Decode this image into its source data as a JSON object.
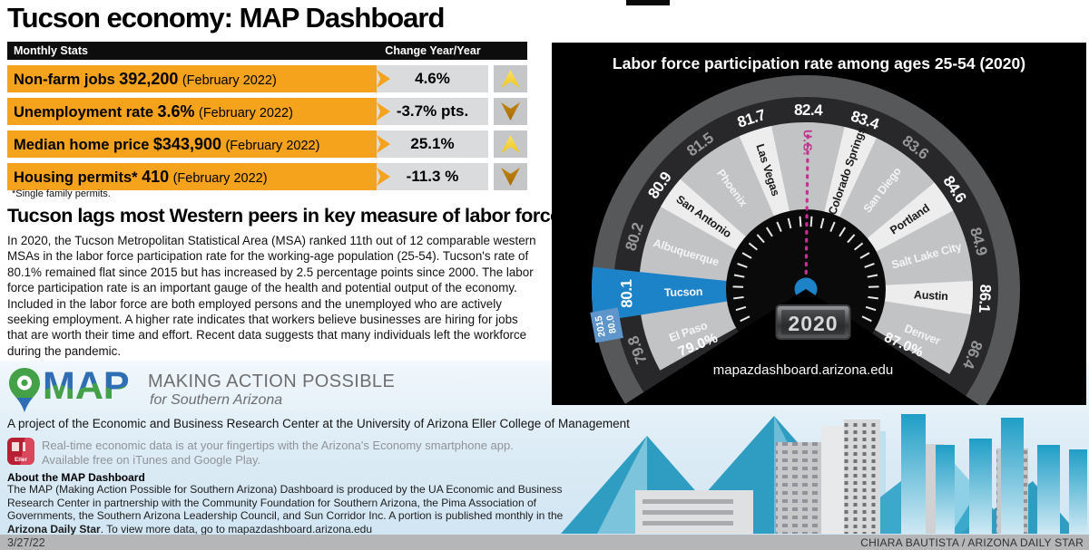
{
  "page": {
    "title": "Tucson economy: MAP Dashboard",
    "date": "3/27/22",
    "credit": "CHIARA BAUTISTA / ARIZONA DAILY STAR"
  },
  "stats_table": {
    "header": {
      "col1": "Monthly Stats",
      "col2": "Change Year/Year"
    },
    "rows": [
      {
        "label": "Non-farm jobs",
        "value": "392,200",
        "period": "(February 2022)",
        "change": "4.6%",
        "direction": "up"
      },
      {
        "label": "Unemployment rate",
        "value": "3.6%",
        "period": "(February 2022)",
        "change": "-3.7% pts.",
        "direction": "down"
      },
      {
        "label": "Median home price",
        "value": "$343,900",
        "period": "(February 2022)",
        "change": "25.1%",
        "direction": "up"
      },
      {
        "label": "Housing permits*",
        "value": "410",
        "period": "(February 2022)",
        "change": "-11.3 %",
        "direction": "down"
      }
    ],
    "footnote": "*Single family permits."
  },
  "article": {
    "headline": "Tucson lags most Western peers in key measure of labor force",
    "body": "In 2020, the Tucson Metropolitan Statistical Area (MSA) ranked 11th out of 12 comparable western MSAs in the labor force participation rate for the working-age population (25-54). Tucson's rate of 80.1% remained flat since 2015 but has increased by 2.5 percentage points since 2000. The labor force participation rate is an important gauge of the health and potential output of the economy. Included in the labor force are both employed persons and the unemployed who are actively seeking employment. A higher rate indicates that workers believe businesses are hiring for jobs that are worth their time and effort. Recent data suggests that many individuals left the workforce during the pandemic."
  },
  "chart_data": {
    "type": "gauge",
    "title": "Labor force participation rate among ages 25-54 (2020)",
    "unit": "%",
    "scale_min_label": "79.0%",
    "scale_max_label": "87.0%",
    "year_display": "2020",
    "source": "mapazdashboard.arizona.edu",
    "tucson_2015_marker": {
      "line1": "2015",
      "line2": "80.0"
    },
    "points": [
      {
        "name": "El Paso",
        "value": 79.8,
        "style": "gray"
      },
      {
        "name": "Tucson",
        "value": 80.1,
        "style": "highlight-blue"
      },
      {
        "name": "Albuquerque",
        "value": 80.2,
        "style": "gray"
      },
      {
        "name": "San Antonio",
        "value": 80.9,
        "style": "white"
      },
      {
        "name": "Phoenix",
        "value": 81.5,
        "style": "gray"
      },
      {
        "name": "Las Vegas",
        "value": 81.7,
        "style": "white"
      },
      {
        "name": "U.S.",
        "value": 82.4,
        "style": "us-dotted"
      },
      {
        "name": "Colorado Springs",
        "value": 83.4,
        "style": "white"
      },
      {
        "name": "San Diego",
        "value": 83.6,
        "style": "gray"
      },
      {
        "name": "Portland",
        "value": 84.6,
        "style": "white"
      },
      {
        "name": "Salt Lake City",
        "value": 84.9,
        "style": "gray"
      },
      {
        "name": "Austin",
        "value": 86.1,
        "style": "white"
      },
      {
        "name": "Denver",
        "value": 86.4,
        "style": "gray"
      }
    ],
    "colors": {
      "tucson_blue": "#1d83c9",
      "us_pink": "#c2338f",
      "sector_gray": "#c2c3c5",
      "sector_white": "#ededee",
      "band_dark": "#28282a",
      "bezel_gray": "#57585a",
      "accent_orange": "#f5a21d",
      "arrow_up_yellow": "#efc414",
      "arrow_down_brown": "#a66b07"
    }
  },
  "branding": {
    "logo_text": "MAP",
    "tagline": "MAKING ACTION POSSIBLE",
    "tagline_sub": "for Southern Arizona",
    "project_line": "A project of the Economic and Business Research Center at the University of Arizona Eller College of Management",
    "app_icon_label": "Eller",
    "app_line1": "Real-time economic data is at your fingertips with the Arizona's Economy smartphone app.",
    "app_line2": "Available free on iTunes and Google Play.",
    "about_title": "About the MAP Dashboard",
    "about_body_1": "The MAP (Making Action Possible for Southern Arizona) Dashboard is produced by the UA Economic and Business Research Center in partnership with the Community Foundation for Southern Arizona, the Pima Association of Governments, the Southern Arizona Leadership Council, and Sun Corridor Inc. A portion is published monthly in the ",
    "about_bold": "Arizona Daily Star",
    "about_body_2": ". To view more data, go to mapazdashboard.arizona.edu"
  }
}
